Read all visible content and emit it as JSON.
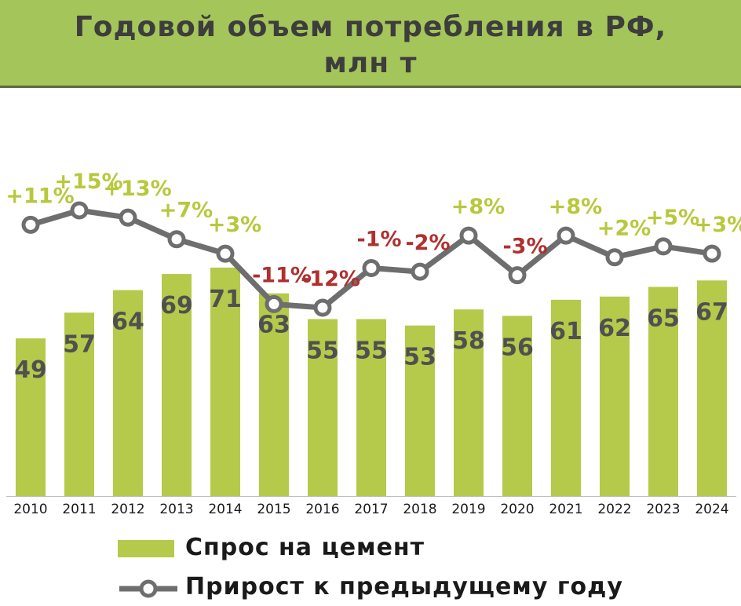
{
  "title": {
    "line1": "Годовой объем потребления в РФ,",
    "line2": "млн т"
  },
  "colors": {
    "header_bg": "#a4c55a",
    "bar": "#b5c94a",
    "line": "#6e6e6e",
    "bar_label": "#505050",
    "growth_positive": "#b8c83c",
    "growth_negative": "#b03030"
  },
  "chart_data": {
    "type": "bar",
    "categories": [
      "2010",
      "2011",
      "2012",
      "2013",
      "2014",
      "2015",
      "2016",
      "2017",
      "2018",
      "2019",
      "2020",
      "2021",
      "2022",
      "2023",
      "2024"
    ],
    "series": [
      {
        "name": "Спрос на цемент",
        "type": "bar",
        "values": [
          49,
          57,
          64,
          69,
          71,
          63,
          55,
          55,
          53,
          58,
          56,
          61,
          62,
          65,
          67
        ]
      },
      {
        "name": "Прирост к предыдущему году",
        "type": "line",
        "values": [
          11,
          15,
          13,
          7,
          3,
          -11,
          -12,
          -1,
          -2,
          8,
          -3,
          8,
          2,
          5,
          3
        ],
        "labels": [
          "+11%",
          "+15%",
          "+13%",
          "+7%",
          "+3%",
          "-11%",
          "-12%",
          "-1%",
          "-2%",
          "+8%",
          "-3%",
          "+8%",
          "+2%",
          "+5%",
          "+3%"
        ]
      }
    ],
    "xlabel": "",
    "ylabel": "",
    "ylim": [
      0,
      75
    ],
    "grid": false,
    "legend": "bottom"
  },
  "legend": {
    "bar_label": "Спрос на цемент",
    "line_label": "Прирост к предыдущему году"
  }
}
